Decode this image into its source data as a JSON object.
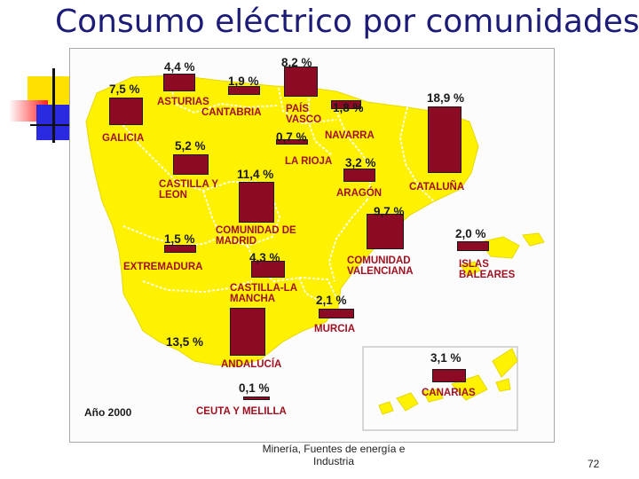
{
  "slide": {
    "title": "Consumo eléctrico por comunidades.",
    "footer": "Minería, Fuentes de energía e Industria",
    "page_number": "72"
  },
  "map": {
    "year_label": "Año 2000",
    "colors": {
      "land": "#fff200",
      "bar": "#8d0a24",
      "label": "#a01020",
      "border": "#ffffff"
    },
    "regions": [
      {
        "id": "asturias",
        "name": "ASTURIAS",
        "value": "4,4 %"
      },
      {
        "id": "cantabria",
        "name": "CANTABRIA",
        "value": "1,9 %"
      },
      {
        "id": "pais-vasco",
        "name": "PAÍS VASCO",
        "value": "8,2 %"
      },
      {
        "id": "galicia",
        "name": "GALICIA",
        "value": "7,5 %"
      },
      {
        "id": "navarra",
        "name": "NAVARRA",
        "value": "1,8 %"
      },
      {
        "id": "la-rioja",
        "name": "LA RIOJA",
        "value": "0,7 %"
      },
      {
        "id": "cataluna",
        "name": "CATALUÑA",
        "value": "18,9 %"
      },
      {
        "id": "castilla-leon",
        "name": "CASTILLA Y LEON",
        "value": "5,2 %"
      },
      {
        "id": "aragon",
        "name": "ARAGÓN",
        "value": "3,2 %"
      },
      {
        "id": "madrid",
        "name": "COMUNIDAD DE MADRID",
        "value": "11,4 %"
      },
      {
        "id": "valenciana",
        "name": "COMUNIDAD VALENCIANA",
        "value": "9,7 %"
      },
      {
        "id": "baleares",
        "name": "ISLAS BALEARES",
        "value": "2,0 %"
      },
      {
        "id": "extremadura",
        "name": "EXTREMADURA",
        "value": "1,5 %"
      },
      {
        "id": "castilla-la-mancha",
        "name": "CASTILLA-LA MANCHA",
        "value": "4,3 %"
      },
      {
        "id": "murcia",
        "name": "MURCIA",
        "value": "2,1 %"
      },
      {
        "id": "andalucia",
        "name": "ANDALUCÍA",
        "value": "13,5 %"
      },
      {
        "id": "canarias",
        "name": "CANARIAS",
        "value": "3,1 %"
      },
      {
        "id": "ceuta-melilla",
        "name": "CEUTA Y MELILLA",
        "value": "0,1 %"
      }
    ]
  }
}
